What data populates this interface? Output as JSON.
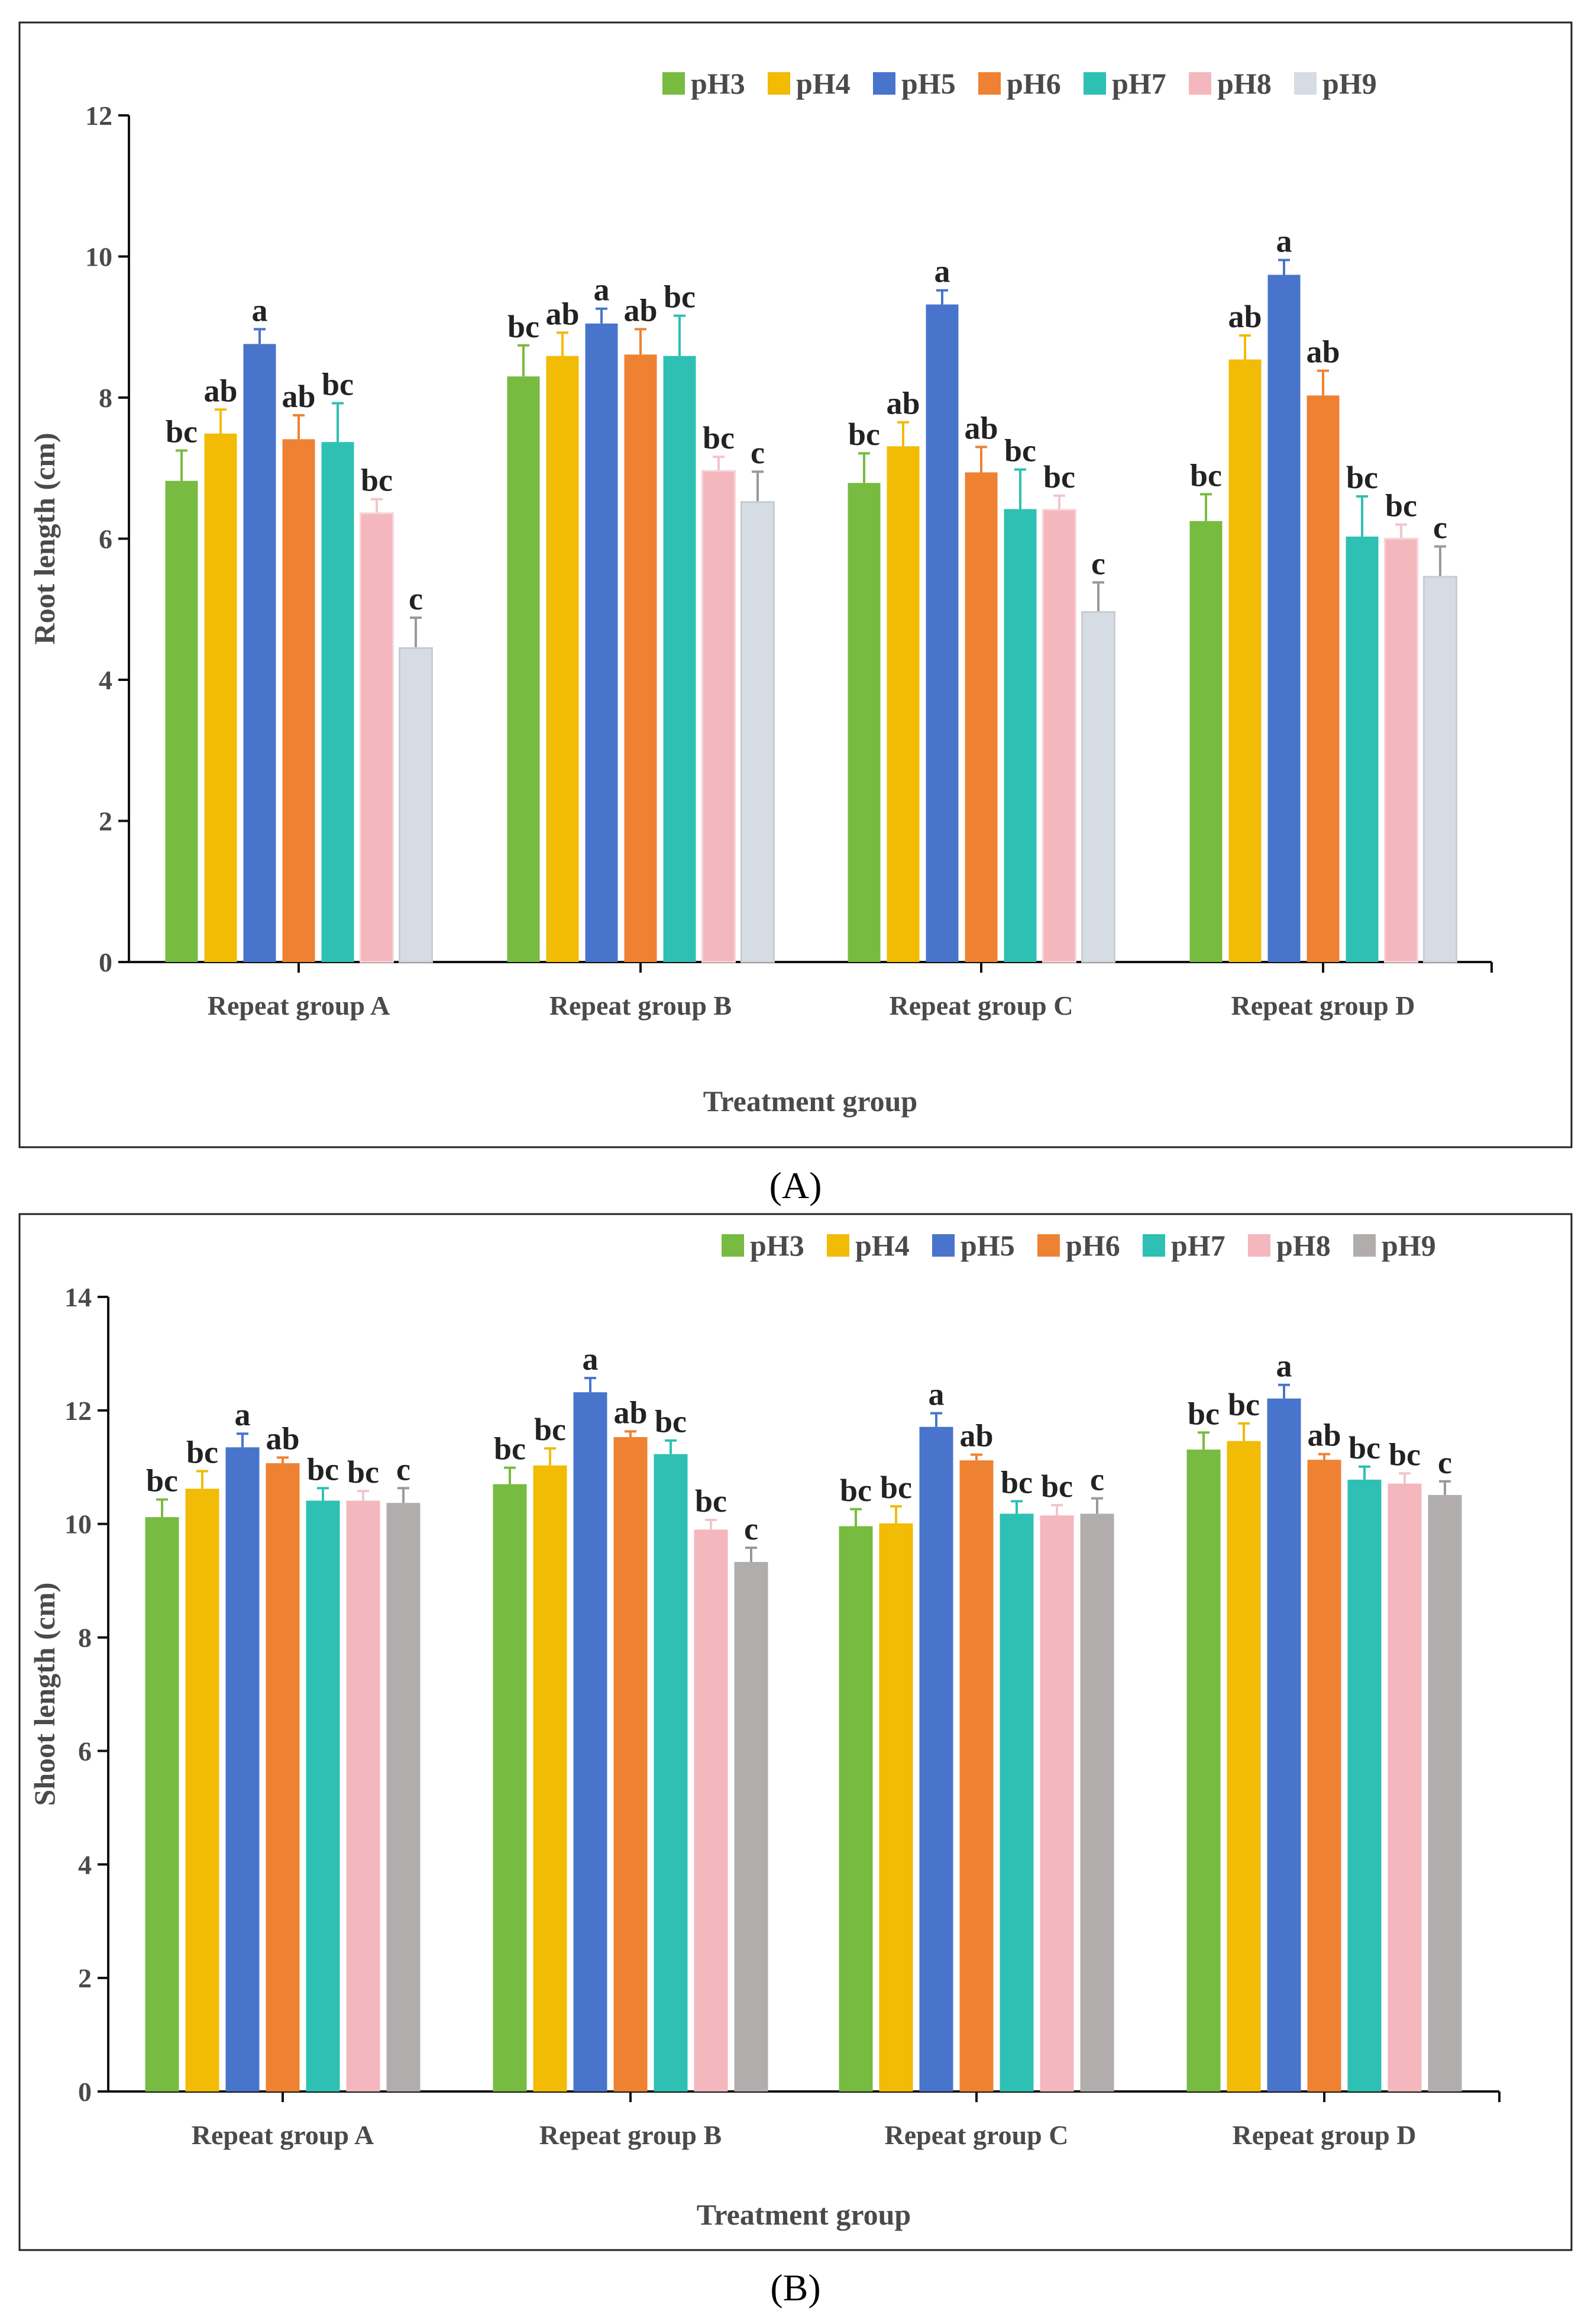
{
  "chart_data": [
    {
      "type": "bar",
      "panel_label": "(A)",
      "title": "",
      "xlabel": "Treatment group",
      "ylabel": "Root length (cm)",
      "ylim": [
        0,
        12
      ],
      "yticks": [
        "0",
        "2",
        "4",
        "6",
        "8",
        "10",
        "12"
      ],
      "legend_placement": "top-right",
      "categories": [
        "Repeat group A",
        "Repeat group B",
        "Repeat group C",
        "Repeat group D"
      ],
      "series": [
        {
          "name": "pH3",
          "color": "#77bb41",
          "values": [
            6.82,
            8.3,
            6.79,
            6.25
          ],
          "error": [
            0.43,
            0.44,
            0.42,
            0.38
          ],
          "letters": [
            "bc",
            "bc",
            "bc",
            "bc"
          ]
        },
        {
          "name": "pH4",
          "color": "#f1bb06",
          "values": [
            7.49,
            8.59,
            7.31,
            8.54
          ],
          "error": [
            0.34,
            0.33,
            0.34,
            0.34
          ],
          "letters": [
            "ab",
            "ab",
            "ab",
            "ab"
          ]
        },
        {
          "name": "pH5",
          "color": "#4874cb",
          "values": [
            8.76,
            9.05,
            9.32,
            9.74
          ],
          "error": [
            0.21,
            0.21,
            0.2,
            0.21
          ],
          "letters": [
            "a",
            "a",
            "a",
            "a"
          ]
        },
        {
          "name": "pH6",
          "color": "#ee8232",
          "values": [
            7.41,
            8.61,
            6.94,
            8.03
          ],
          "error": [
            0.34,
            0.36,
            0.36,
            0.35
          ],
          "letters": [
            "ab",
            "ab",
            "ab",
            "ab"
          ]
        },
        {
          "name": "pH7",
          "color": "#2ec0b3",
          "values": [
            7.37,
            8.59,
            6.42,
            6.03
          ],
          "error": [
            0.55,
            0.57,
            0.56,
            0.57
          ],
          "letters": [
            "bc",
            "bc",
            "bc",
            "bc"
          ]
        },
        {
          "name": "pH8",
          "color": "#f4b7be",
          "values": [
            6.36,
            6.96,
            6.41,
            6.0
          ],
          "error": [
            0.2,
            0.2,
            0.2,
            0.2
          ],
          "letters": [
            "bc",
            "bc",
            "bc",
            "bc"
          ]
        },
        {
          "name": "pH9",
          "color": "#d6dce4",
          "values": [
            4.45,
            6.52,
            4.96,
            5.46
          ],
          "error": [
            0.43,
            0.43,
            0.42,
            0.43
          ],
          "letters": [
            "c",
            "c",
            "c",
            "c"
          ]
        }
      ]
    },
    {
      "type": "bar",
      "panel_label": "(B)",
      "title": "",
      "xlabel": "Treatment group",
      "ylabel": "Shoot length (cm)",
      "ylim": [
        0,
        14
      ],
      "yticks": [
        "0",
        "2",
        "4",
        "6",
        "8",
        "10",
        "12",
        "14"
      ],
      "legend_placement": "top-right",
      "categories": [
        "Repeat group A",
        "Repeat group B",
        "Repeat group C",
        "Repeat group D"
      ],
      "series": [
        {
          "name": "pH3",
          "color": "#77bb41",
          "values": [
            10.12,
            10.7,
            9.96,
            11.31
          ],
          "error": [
            0.31,
            0.29,
            0.3,
            0.3
          ],
          "letters": [
            "bc",
            "bc",
            "bc",
            "bc"
          ]
        },
        {
          "name": "pH4",
          "color": "#f1bb06",
          "values": [
            10.62,
            11.03,
            10.01,
            11.46
          ],
          "error": [
            0.31,
            0.3,
            0.3,
            0.31
          ],
          "letters": [
            "bc",
            "bc",
            "bc",
            "bc"
          ]
        },
        {
          "name": "pH5",
          "color": "#4874cb",
          "values": [
            11.35,
            12.32,
            11.71,
            12.21
          ],
          "error": [
            0.24,
            0.25,
            0.24,
            0.24
          ],
          "letters": [
            "a",
            "a",
            "a",
            "a"
          ]
        },
        {
          "name": "pH6",
          "color": "#ee8232",
          "values": [
            11.07,
            11.53,
            11.12,
            11.13
          ],
          "error": [
            0.1,
            0.1,
            0.1,
            0.1
          ],
          "letters": [
            "ab",
            "ab",
            "ab",
            "ab"
          ]
        },
        {
          "name": "pH7",
          "color": "#2ec0b3",
          "values": [
            10.41,
            11.23,
            10.18,
            10.78
          ],
          "error": [
            0.22,
            0.24,
            0.22,
            0.23
          ],
          "letters": [
            "bc",
            "bc",
            "bc",
            "bc"
          ]
        },
        {
          "name": "pH8",
          "color": "#f4b7be",
          "values": [
            10.41,
            9.9,
            10.15,
            10.71
          ],
          "error": [
            0.17,
            0.17,
            0.18,
            0.18
          ],
          "letters": [
            "bc",
            "bc",
            "bc",
            "bc"
          ]
        },
        {
          "name": "pH9",
          "color": "#b0adac",
          "values": [
            10.37,
            9.33,
            10.18,
            10.51
          ],
          "error": [
            0.26,
            0.25,
            0.27,
            0.24
          ],
          "letters": [
            "c",
            "c",
            "c",
            "c"
          ]
        }
      ]
    }
  ]
}
